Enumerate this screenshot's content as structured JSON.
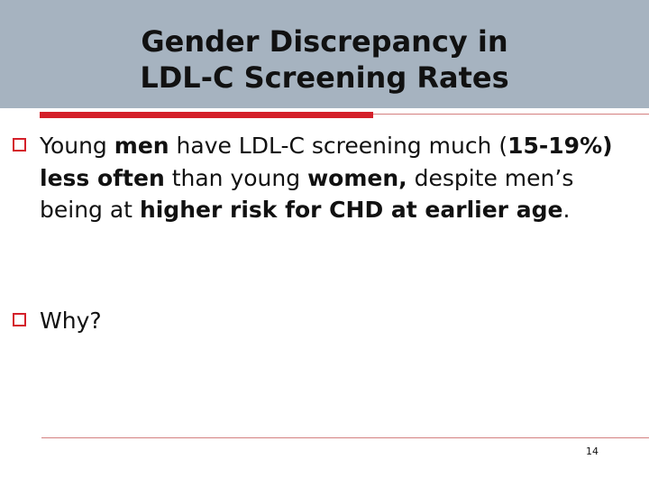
{
  "slide": {
    "title_line1": "Gender Discrepancy in",
    "title_line2": "LDL-C Screening Rates",
    "bullets": [
      {
        "segments": [
          {
            "text": "Young ",
            "bold": false
          },
          {
            "text": "men",
            "bold": true
          },
          {
            "text": " have LDL-C screening much (",
            "bold": false
          },
          {
            "text": "15-19%) less often",
            "bold": true
          },
          {
            "text": " than young ",
            "bold": false
          },
          {
            "text": "women,",
            "bold": true
          },
          {
            "text": " despite men’s being at ",
            "bold": false
          },
          {
            "text": "higher risk for CHD at earlier age",
            "bold": true
          },
          {
            "text": ".",
            "bold": false
          }
        ]
      },
      {
        "segments": [
          {
            "text": "Why?",
            "bold": false
          }
        ]
      }
    ],
    "page_number": "14"
  },
  "colors": {
    "title_band": "#a6b3c0",
    "accent_red": "#d4202a",
    "rule_line": "#d48080"
  }
}
